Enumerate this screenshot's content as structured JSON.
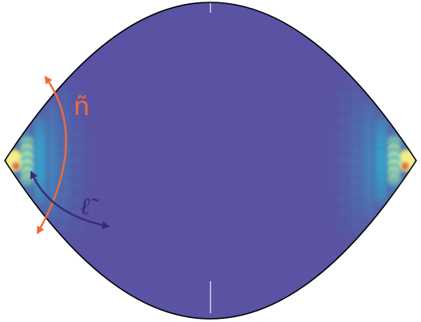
{
  "labels": {
    "n_label": "ñ",
    "ell_label": "ℓ̃"
  },
  "colors": {
    "background": "#5a52a3",
    "outline": "#000000",
    "n_arrow": "#f36a3a",
    "ell_arrow": "#3b2a7a",
    "mode_yellow": "#f3f08a",
    "mode_cyan": "#2fb2d6",
    "mode_red": "#d94a3a",
    "seam": "#d8d8e8"
  },
  "icons": {
    "n_arrow": "double-headed-arc-arrow",
    "ell_arrow": "double-headed-arc-arrow"
  }
}
